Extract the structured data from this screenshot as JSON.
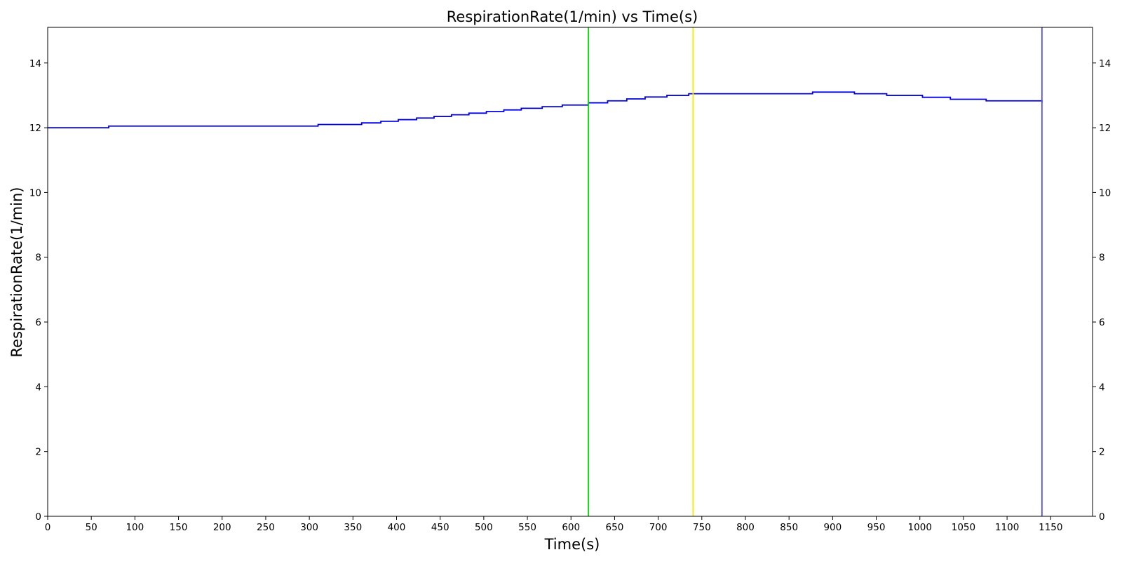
{
  "chart_data": {
    "type": "line",
    "title": "RespirationRate(1/min) vs Time(s)",
    "xlabel": "Time(s)",
    "ylabel": "RespirationRate(1/min)",
    "xlim": [
      0,
      1198
    ],
    "ylim": [
      0,
      15.1
    ],
    "x_ticks": [
      0,
      50,
      100,
      150,
      200,
      250,
      300,
      350,
      400,
      450,
      500,
      550,
      600,
      650,
      700,
      750,
      800,
      850,
      900,
      950,
      1000,
      1050,
      1100,
      1150
    ],
    "y_ticks": [
      0,
      2,
      4,
      6,
      8,
      10,
      12,
      14
    ],
    "right_y_ticks": true,
    "grid": false,
    "legend": "none",
    "series": [
      {
        "color": "#0000dd",
        "step": true,
        "x": [
          0,
          70,
          310,
          360,
          382,
          402,
          423,
          443,
          463,
          483,
          503,
          523,
          543,
          567,
          590,
          620,
          642,
          664,
          685,
          710,
          735,
          877,
          925,
          962,
          1003,
          1035,
          1076,
          1140
        ],
        "y": [
          12.0,
          12.05,
          12.1,
          12.15,
          12.2,
          12.25,
          12.3,
          12.35,
          12.4,
          12.45,
          12.5,
          12.55,
          12.6,
          12.65,
          12.7,
          12.77,
          12.83,
          12.89,
          12.95,
          13.0,
          13.05,
          13.1,
          13.05,
          13.0,
          12.94,
          12.88,
          12.83,
          12.77
        ]
      }
    ],
    "vlines": [
      {
        "x": 620,
        "color": "#00dd00"
      },
      {
        "x": 740,
        "color": "#f2ea00"
      },
      {
        "x": 1140,
        "color": "#5555ee"
      }
    ]
  }
}
